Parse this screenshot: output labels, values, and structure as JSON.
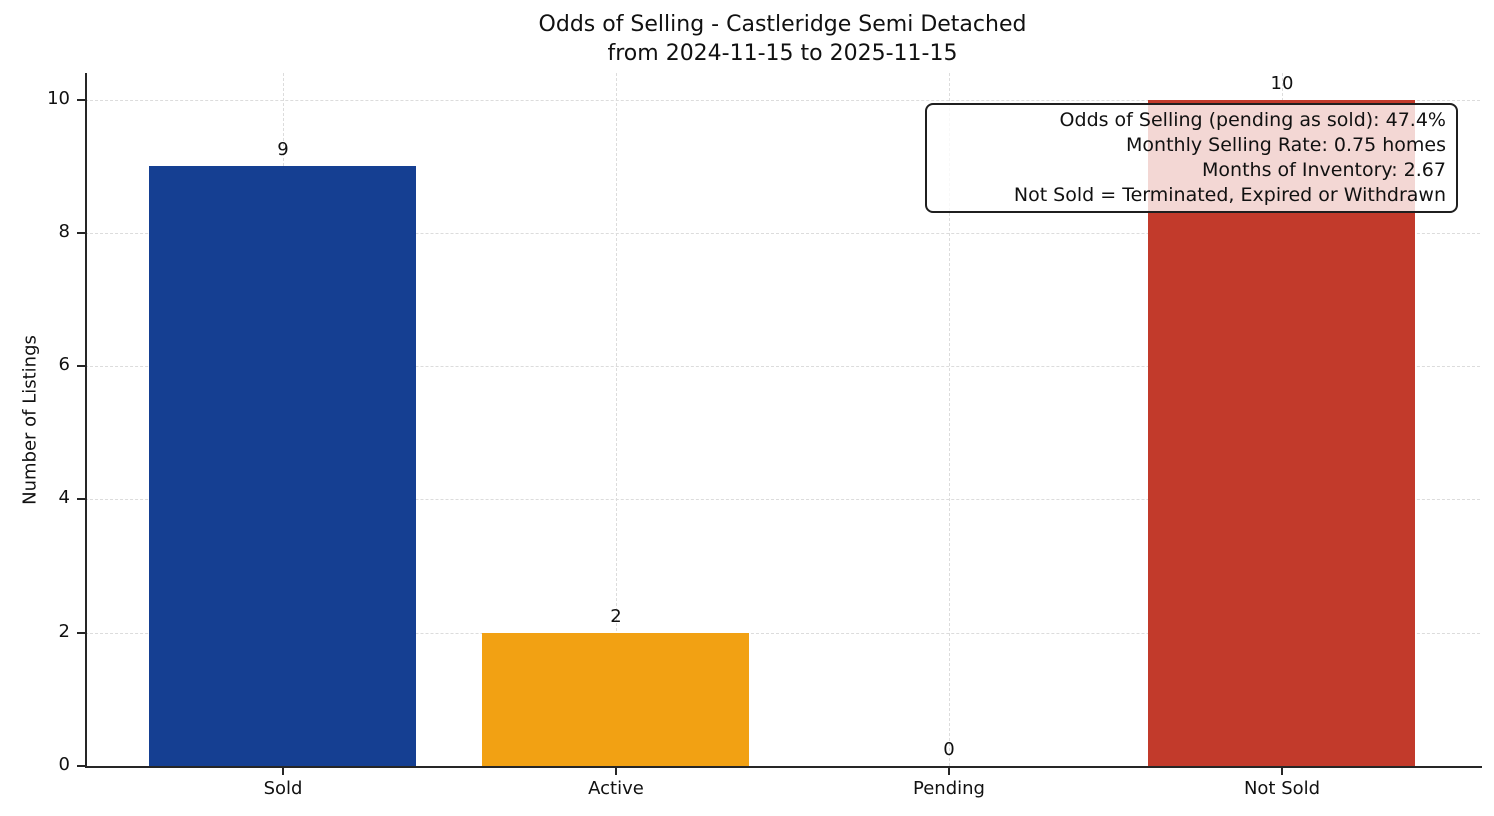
{
  "title": {
    "line1": "Odds of Selling - Castleridge Semi Detached",
    "line2": "from 2024-11-15 to 2025-11-15"
  },
  "chart_data": {
    "type": "bar",
    "title": "Odds of Selling - Castleridge Semi Detached",
    "subtitle": "from 2024-11-15 to 2025-11-15",
    "categories": [
      "Sold",
      "Active",
      "Pending",
      "Not Sold"
    ],
    "values": [
      9,
      2,
      0,
      10
    ],
    "value_labels": [
      "9",
      "2",
      "0",
      "10"
    ],
    "bar_colors": [
      "#153F92",
      "#F2A113",
      null,
      "#C23A2B"
    ],
    "xlabel": "",
    "ylabel": "Number of Listings",
    "ylim": [
      0,
      10.4
    ],
    "yticks": [
      0,
      2,
      4,
      6,
      8,
      10
    ],
    "grid": true,
    "grid_style": "dashed",
    "legend": "none",
    "annotation_box": {
      "position": "top-right",
      "lines": [
        "Odds of Selling (pending as sold): 47.4%",
        "Monthly Selling Rate: 0.75 homes",
        "Months of Inventory: 2.67",
        "Not Sold = Terminated, Expired or Withdrawn"
      ]
    }
  },
  "colors": {
    "axis": "#262626",
    "grid": "#dcdcdc",
    "text": "#111111",
    "annotation_bg": "rgba(255,255,255,0.8)",
    "annotation_border": "#1f1f1f"
  }
}
